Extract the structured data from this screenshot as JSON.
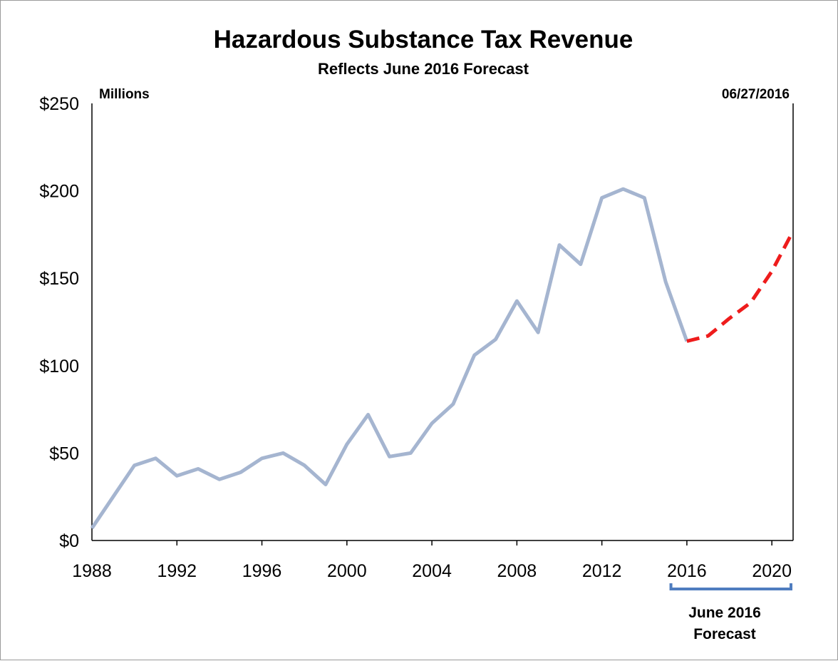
{
  "chart_data": {
    "type": "line",
    "title": "Hazardous Substance Tax Revenue",
    "subtitle": "Reflects June 2016 Forecast",
    "units_label": "Millions",
    "date_label": "06/27/2016",
    "xlabel": "",
    "ylabel": "",
    "xlim": [
      1988,
      2021
    ],
    "ylim": [
      0,
      250
    ],
    "x_ticks": [
      1988,
      1992,
      1996,
      2000,
      2004,
      2008,
      2012,
      2016,
      2020
    ],
    "y_ticks": [
      0,
      50,
      100,
      150,
      200,
      250
    ],
    "y_tick_labels": [
      "$0",
      "$50",
      "$100",
      "$150",
      "$200",
      "$250"
    ],
    "grid": false,
    "series": [
      {
        "style": "solid",
        "color": "#a5b5d0",
        "x": [
          1988,
          1989,
          1990,
          1991,
          1992,
          1993,
          1994,
          1995,
          1996,
          1997,
          1998,
          1999,
          2000,
          2001,
          2002,
          2003,
          2004,
          2005,
          2006,
          2007,
          2008,
          2009,
          2010,
          2011,
          2012,
          2013,
          2014,
          2015,
          2016
        ],
        "values": [
          7,
          25,
          43,
          47,
          37,
          41,
          35,
          39,
          47,
          50,
          43,
          32,
          55,
          72,
          48,
          50,
          67,
          78,
          106,
          115,
          137,
          119,
          169,
          158,
          196,
          201,
          196,
          148,
          114
        ]
      },
      {
        "style": "dashed",
        "color": "#ee1c1c",
        "x": [
          2016,
          2017,
          2018,
          2019,
          2020,
          2021
        ],
        "values": [
          114,
          117,
          127,
          136,
          154,
          177
        ]
      }
    ],
    "annotation": {
      "label_line1": "June 2016",
      "label_line2": "Forecast",
      "x_range": [
        2015.25,
        2021
      ],
      "color": "#4f7dbf"
    }
  }
}
